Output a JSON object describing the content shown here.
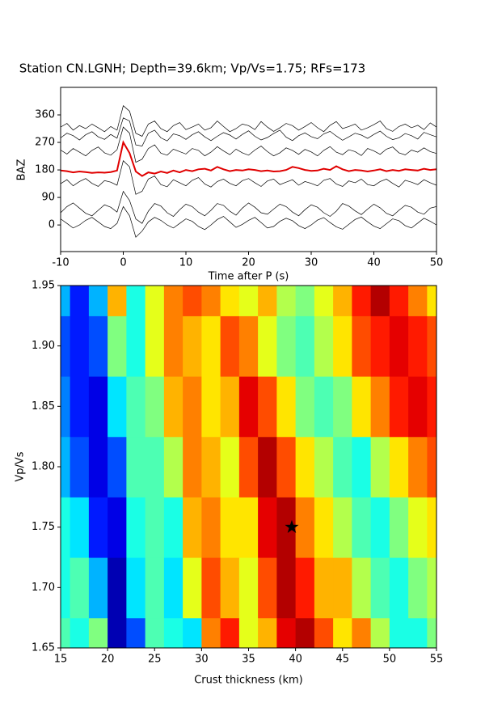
{
  "title": "Station CN.LGNH; Depth=39.6km; Vp/Vs=1.75; RFs=173",
  "chart_data": [
    {
      "type": "line",
      "xlabel": "Time after P (s)",
      "ylabel": "BAZ",
      "xlim": [
        -10,
        50
      ],
      "ylim": [
        -87,
        450
      ],
      "xticks": [
        -10,
        0,
        10,
        20,
        30,
        40,
        50
      ],
      "yticks": [
        0,
        90,
        180,
        270,
        360
      ],
      "x": [
        -10,
        -9,
        -8,
        -7,
        -6,
        -5,
        -4,
        -3,
        -2,
        -1,
        0,
        1,
        2,
        3,
        4,
        5,
        6,
        7,
        8,
        9,
        10,
        11,
        12,
        13,
        14,
        15,
        16,
        17,
        18,
        19,
        20,
        21,
        22,
        23,
        24,
        25,
        26,
        27,
        28,
        29,
        30,
        31,
        32,
        33,
        34,
        35,
        36,
        37,
        38,
        39,
        40,
        41,
        42,
        43,
        44,
        45,
        46,
        47,
        48,
        49,
        50
      ],
      "series": [
        {
          "color": "#000000",
          "values": [
            320,
            332,
            310,
            325,
            315,
            330,
            318,
            305,
            322,
            310,
            390,
            372,
            300,
            290,
            330,
            340,
            315,
            305,
            325,
            335,
            312,
            320,
            330,
            310,
            318,
            340,
            322,
            305,
            315,
            330,
            325,
            312,
            338,
            320,
            306,
            318,
            332,
            325,
            310,
            322,
            335,
            318,
            305,
            326,
            338,
            315,
            322,
            330,
            310,
            318,
            328,
            340,
            315,
            306,
            322,
            330,
            318,
            326,
            312,
            334,
            320
          ]
        },
        {
          "color": "#000000",
          "values": [
            285,
            300,
            292,
            278,
            295,
            305,
            288,
            280,
            296,
            284,
            350,
            340,
            262,
            258,
            300,
            310,
            285,
            275,
            298,
            292,
            280,
            295,
            305,
            288,
            276,
            290,
            302,
            294,
            281,
            296,
            308,
            290,
            278,
            286,
            299,
            310,
            287,
            276,
            292,
            301,
            289,
            282,
            298,
            306,
            291,
            277,
            288,
            300,
            294,
            283,
            296,
            307,
            290,
            279,
            285,
            299,
            292,
            281,
            303,
            295,
            288
          ]
        },
        {
          "color": "#000000",
          "values": [
            245,
            232,
            250,
            238,
            226,
            244,
            255,
            236,
            228,
            246,
            320,
            300,
            205,
            215,
            250,
            262,
            235,
            228,
            248,
            240,
            232,
            250,
            244,
            226,
            238,
            256,
            242,
            230,
            248,
            236,
            228,
            245,
            258,
            240,
            226,
            236,
            252,
            244,
            231,
            247,
            239,
            226,
            244,
            256,
            238,
            230,
            246,
            240,
            227,
            250,
            242,
            231,
            248,
            255,
            236,
            229,
            245,
            238,
            252,
            240,
            234
          ]
        },
        {
          "color": "#000000",
          "values": [
            135,
            148,
            128,
            142,
            152,
            136,
            126,
            145,
            140,
            130,
            210,
            190,
            100,
            110,
            150,
            160,
            132,
            125,
            148,
            138,
            128,
            146,
            155,
            134,
            124,
            142,
            150,
            136,
            128,
            145,
            152,
            138,
            126,
            144,
            150,
            132,
            140,
            148,
            130,
            142,
            136,
            128,
            146,
            152,
            134,
            126,
            144,
            138,
            150,
            132,
            128,
            142,
            150,
            136,
            124,
            146,
            140,
            132,
            148,
            138,
            130
          ]
        },
        {
          "color": "#000000",
          "values": [
            40,
            60,
            72,
            55,
            38,
            30,
            48,
            66,
            58,
            42,
            110,
            80,
            20,
            5,
            45,
            70,
            62,
            40,
            28,
            50,
            68,
            60,
            42,
            30,
            48,
            70,
            64,
            45,
            32,
            55,
            72,
            58,
            40,
            35,
            52,
            68,
            60,
            42,
            30,
            50,
            66,
            58,
            40,
            28,
            45,
            70,
            62,
            46,
            34,
            52,
            68,
            56,
            38,
            30,
            48,
            64,
            58,
            42,
            35,
            55,
            60
          ]
        },
        {
          "color": "#000000",
          "values": [
            20,
            5,
            -10,
            0,
            15,
            25,
            10,
            -5,
            -12,
            5,
            60,
            30,
            -40,
            -20,
            10,
            25,
            15,
            0,
            -10,
            5,
            20,
            12,
            -5,
            -15,
            0,
            18,
            28,
            10,
            -8,
            2,
            15,
            25,
            8,
            -10,
            -5,
            12,
            22,
            14,
            -2,
            -12,
            0,
            16,
            24,
            8,
            -6,
            -14,
            2,
            18,
            26,
            10,
            -4,
            -12,
            4,
            20,
            14,
            -2,
            -10,
            6,
            22,
            12,
            0
          ]
        },
        {
          "color": "#e00000",
          "values": [
            178,
            176,
            172,
            175,
            173,
            170,
            172,
            171,
            173,
            178,
            270,
            235,
            175,
            160,
            172,
            168,
            175,
            170,
            178,
            172,
            180,
            176,
            182,
            184,
            178,
            190,
            182,
            176,
            180,
            178,
            182,
            180,
            176,
            178,
            175,
            176,
            180,
            190,
            186,
            180,
            177,
            178,
            184,
            180,
            192,
            182,
            176,
            180,
            178,
            175,
            178,
            182,
            176,
            180,
            177,
            182,
            180,
            178,
            184,
            180,
            182
          ]
        }
      ]
    },
    {
      "type": "heatmap",
      "xlabel": "Crust thickness (km)",
      "ylabel": "Vp/Vs",
      "colormap": "jet",
      "zlim": [
        0,
        1
      ],
      "xlim": [
        15,
        55
      ],
      "ylim": [
        1.65,
        1.95
      ],
      "xticks": [
        15,
        20,
        25,
        30,
        35,
        40,
        45,
        50,
        55
      ],
      "yticks": [
        1.65,
        {
          "value": 1.7,
          "label": "1.70"
        },
        1.75,
        {
          "value": 1.8,
          "label": "1.80"
        },
        1.85,
        {
          "value": 1.9,
          "label": "1.90"
        },
        1.95
      ],
      "x": [
        15,
        17,
        19,
        21,
        23,
        25,
        27,
        29,
        31,
        33,
        35,
        37,
        39,
        41,
        43,
        45,
        47,
        49,
        51,
        53,
        55
      ],
      "y": [
        1.65,
        1.7,
        1.75,
        1.8,
        1.85,
        1.9,
        1.95
      ],
      "z": [
        [
          0.45,
          0.4,
          0.5,
          0.05,
          0.2,
          0.45,
          0.4,
          0.35,
          0.75,
          0.85,
          0.6,
          0.7,
          0.9,
          0.95,
          0.8,
          0.65,
          0.75,
          0.55,
          0.4,
          0.4,
          0.5
        ],
        [
          0.4,
          0.45,
          0.3,
          0.05,
          0.35,
          0.45,
          0.35,
          0.6,
          0.8,
          0.7,
          0.6,
          0.8,
          0.95,
          0.85,
          0.7,
          0.7,
          0.55,
          0.45,
          0.4,
          0.5,
          0.55
        ],
        [
          0.4,
          0.35,
          0.15,
          0.1,
          0.4,
          0.45,
          0.4,
          0.7,
          0.75,
          0.65,
          0.65,
          0.9,
          0.95,
          0.75,
          0.65,
          0.55,
          0.45,
          0.4,
          0.5,
          0.6,
          0.65
        ],
        [
          0.3,
          0.2,
          0.1,
          0.2,
          0.45,
          0.45,
          0.55,
          0.75,
          0.7,
          0.6,
          0.8,
          0.95,
          0.8,
          0.65,
          0.55,
          0.45,
          0.4,
          0.55,
          0.65,
          0.75,
          0.8
        ],
        [
          0.25,
          0.15,
          0.1,
          0.35,
          0.45,
          0.5,
          0.7,
          0.75,
          0.65,
          0.7,
          0.9,
          0.8,
          0.65,
          0.5,
          0.45,
          0.5,
          0.65,
          0.75,
          0.85,
          0.9,
          0.85
        ],
        [
          0.2,
          0.15,
          0.2,
          0.5,
          0.4,
          0.6,
          0.75,
          0.7,
          0.65,
          0.8,
          0.75,
          0.6,
          0.5,
          0.45,
          0.55,
          0.65,
          0.8,
          0.85,
          0.9,
          0.85,
          0.8
        ],
        [
          0.3,
          0.15,
          0.3,
          0.7,
          0.4,
          0.6,
          0.75,
          0.8,
          0.75,
          0.65,
          0.6,
          0.7,
          0.55,
          0.5,
          0.6,
          0.7,
          0.85,
          0.95,
          0.85,
          0.75,
          0.65
        ]
      ],
      "best": {
        "x": 39.6,
        "y": 1.75
      }
    }
  ]
}
